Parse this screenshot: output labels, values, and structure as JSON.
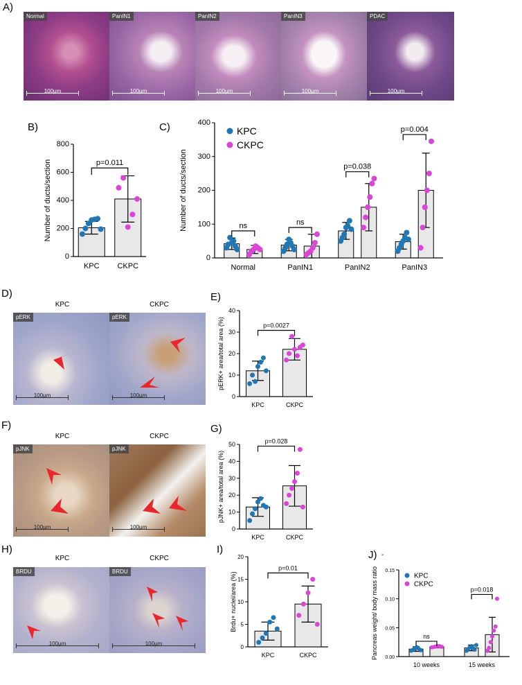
{
  "panel_labels": {
    "A": "A)",
    "B": "B)",
    "C": "C)",
    "D": "D)",
    "E": "E)",
    "F": "F)",
    "G": "G)",
    "H": "H)",
    "I": "I)",
    "J": "J)"
  },
  "histology": {
    "a_tags": [
      "Normal",
      "PanIN1",
      "PanIN2",
      "PanIN3",
      "PDAC"
    ],
    "scale": "100µm",
    "d_titles": [
      "KPC",
      "CKPC"
    ],
    "d_tag": "pERK",
    "f_titles": [
      "KPC",
      "CKPC"
    ],
    "f_tag": "pJNK",
    "h_titles": [
      "KPC",
      "CKPC"
    ],
    "h_tag": "BRDU",
    "j_dash": "-"
  },
  "colors": {
    "kpc": "#1f77b4",
    "ckpc": "#d946d6",
    "bar": "#e8e8e8",
    "arrow": "#e8262b"
  },
  "chart_data": [
    {
      "id": "B",
      "type": "bar",
      "categories": [
        "KPC",
        "CKPC"
      ],
      "values": [
        205,
        410
      ],
      "errors": [
        45,
        165
      ],
      "points": [
        [
          160,
          200,
          235,
          260,
          265,
          270,
          195
        ],
        [
          490,
          560,
          210,
          300,
          410
        ]
      ],
      "ylabel": "Number of ducts/section",
      "ylim": [
        0,
        800
      ],
      "yticks": [
        0,
        200,
        400,
        600,
        800
      ],
      "annotations": [
        {
          "text": "p=0.011",
          "between": [
            0,
            1
          ]
        }
      ]
    },
    {
      "id": "C",
      "type": "bar",
      "categories": [
        "Normal",
        "PanIN1",
        "PanIN2",
        "PanIN3"
      ],
      "series": [
        {
          "name": "KPC",
          "values": [
            42,
            38,
            80,
            48
          ],
          "errors": [
            17,
            17,
            25,
            22
          ],
          "points": [
            [
              30,
              40,
              60,
              45,
              50,
              35,
              25
            ],
            [
              20,
              30,
              40,
              55,
              45,
              35,
              25
            ],
            [
              50,
              60,
              70,
              90,
              95,
              110,
              85
            ],
            [
              20,
              30,
              40,
              50,
              60,
              75,
              55
            ]
          ]
        },
        {
          "name": "CKPC",
          "values": [
            25,
            35,
            150,
            200
          ],
          "errors": [
            12,
            35,
            70,
            110
          ],
          "points": [
            [
              10,
              20,
              25,
              35,
              30,
              25
            ],
            [
              10,
              15,
              20,
              30,
              45,
              70
            ],
            [
              90,
              120,
              150,
              180,
              220,
              235
            ],
            [
              30,
              90,
              150,
              200,
              250,
              345
            ]
          ]
        }
      ],
      "ylabel": "Number of ducts/section",
      "ylim": [
        0,
        400
      ],
      "yticks": [
        0,
        100,
        200,
        300,
        400
      ],
      "legend_position": "top-left",
      "annotations": [
        {
          "text": "ns",
          "category": 0
        },
        {
          "text": "ns",
          "category": 1
        },
        {
          "text": "p=0.038",
          "category": 2
        },
        {
          "text": "p=0.004",
          "category": 3
        }
      ]
    },
    {
      "id": "E",
      "type": "bar",
      "categories": [
        "KPC",
        "CKPC"
      ],
      "values": [
        12,
        22
      ],
      "errors": [
        4.5,
        5
      ],
      "points": [
        [
          6,
          10,
          7,
          14,
          16,
          18,
          12
        ],
        [
          17,
          20,
          28,
          22,
          19,
          23,
          24
        ]
      ],
      "ylabel": "pERK+ area/total area (%)",
      "ylim": [
        0,
        40
      ],
      "yticks": [
        0,
        10,
        20,
        30,
        40
      ],
      "annotations": [
        {
          "text": "p=0.0027",
          "between": [
            0,
            1
          ]
        }
      ]
    },
    {
      "id": "G",
      "type": "bar",
      "categories": [
        "KPC",
        "CKPC"
      ],
      "values": [
        13,
        25.5
      ],
      "errors": [
        5.5,
        12
      ],
      "points": [
        [
          5,
          9,
          12,
          16,
          18,
          14,
          13
        ],
        [
          15,
          20,
          24,
          28,
          33,
          47,
          13
        ]
      ],
      "ylabel": "pJNK+ area/total area (%)",
      "ylim": [
        0,
        50
      ],
      "yticks": [
        0,
        10,
        20,
        30,
        40,
        50
      ],
      "annotations": [
        {
          "text": "p=0.028",
          "between": [
            0,
            1
          ]
        }
      ]
    },
    {
      "id": "I",
      "type": "bar",
      "categories": [
        "KPC",
        "CKPC"
      ],
      "values": [
        3.5,
        9.5
      ],
      "errors": [
        2,
        4
      ],
      "points": [
        [
          1,
          2,
          3,
          5.5,
          6.5,
          4
        ],
        [
          7,
          9.5,
          12,
          15,
          5
        ]
      ],
      "ylabel": "Brdu+ nuclei/area (%)",
      "ylim": [
        0,
        20
      ],
      "yticks": [
        0,
        5,
        10,
        15,
        20
      ],
      "annotations": [
        {
          "text": "p=0.01",
          "between": [
            0,
            1
          ]
        }
      ]
    },
    {
      "id": "J",
      "type": "bar",
      "categories": [
        "10 weeks",
        "15 weeks"
      ],
      "series": [
        {
          "name": "KPC",
          "values": [
            0.013,
            0.015
          ],
          "errors": [
            0.004,
            0.005
          ],
          "points": [
            [
              0.01,
              0.012,
              0.014,
              0.016,
              0.013,
              0.011
            ],
            [
              0.01,
              0.013,
              0.016,
              0.018,
              0.015,
              0.012,
              0.02
            ]
          ]
        },
        {
          "name": "CKPC",
          "values": [
            0.017,
            0.038
          ],
          "errors": [
            0.002,
            0.03
          ],
          "points": [
            [
              0.016,
              0.017,
              0.018,
              0.018,
              0.017
            ],
            [
              0.01,
              0.015,
              0.025,
              0.035,
              0.045,
              0.052,
              0.1
            ]
          ]
        }
      ],
      "ylabel": "Pancreas weight/ body mass ratio",
      "ylim": [
        0,
        0.15
      ],
      "yticks": [
        0.0,
        0.05,
        0.1,
        0.15
      ],
      "yticklabels": [
        "0.00",
        "0.05",
        "0.10",
        "0.15"
      ],
      "legend_position": "top-left",
      "annotations": [
        {
          "text": "ns",
          "category": 0
        },
        {
          "text": "p=0.018",
          "category": 1
        }
      ]
    }
  ]
}
